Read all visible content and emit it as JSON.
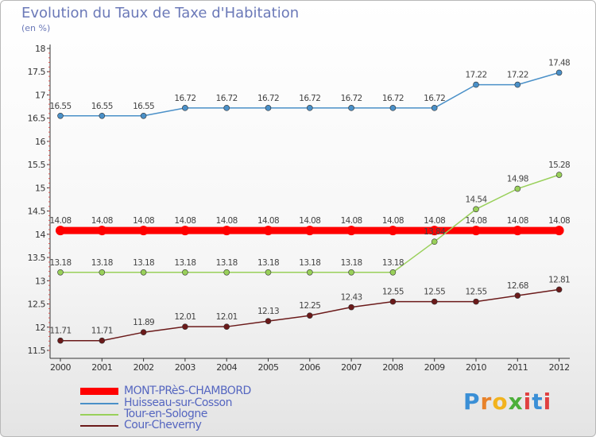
{
  "title": "Evolution du Taux de Taxe d'Habitation",
  "subtitle": "(en %)",
  "brand": {
    "text": "Proxiti",
    "letters": [
      "P",
      "r",
      "o",
      "x",
      "i",
      "t",
      "i"
    ],
    "colors": [
      "#3a8fd6",
      "#e8822a",
      "#f2b31d",
      "#4caf3a",
      "#e04040",
      "#3a8fd6",
      "#e04040"
    ]
  },
  "chart_data": {
    "type": "line",
    "title": "Evolution du Taux de Taxe d'Habitation",
    "ylabel": "(en %)",
    "xlabel": "",
    "x": [
      "2000",
      "2001",
      "2002",
      "2003",
      "2004",
      "2005",
      "2006",
      "2007",
      "2008",
      "2009",
      "2010",
      "2011",
      "2012"
    ],
    "ylim": [
      11.5,
      18
    ],
    "yticks": [
      "11.5",
      "12",
      "12.5",
      "13",
      "13.5",
      "14",
      "14.5",
      "15",
      "15.5",
      "16",
      "16.5",
      "17",
      "17.5",
      "18"
    ],
    "grid": false,
    "legend_position": "bottom-left",
    "series": [
      {
        "name": "MONT-PRèS-CHAMBORD",
        "color": "#ff0000",
        "values": [
          14.08,
          14.08,
          14.08,
          14.08,
          14.08,
          14.08,
          14.08,
          14.08,
          14.08,
          14.08,
          14.08,
          14.08,
          14.08
        ],
        "labels": [
          "14.08",
          "14.08",
          "14.08",
          "14.08",
          "14.08",
          "14.08",
          "14.08",
          "14.08",
          "14.08",
          "14.08",
          "14.08",
          "14.08",
          "14.08"
        ]
      },
      {
        "name": "Huisseau-sur-Cosson",
        "color": "#4a90c8",
        "values": [
          16.55,
          16.55,
          16.55,
          16.72,
          16.72,
          16.72,
          16.72,
          16.72,
          16.72,
          16.72,
          17.22,
          17.22,
          17.48
        ],
        "labels": [
          "16.55",
          "16.55",
          "16.55",
          "16.72",
          "16.72",
          "16.72",
          "16.72",
          "16.72",
          "16.72",
          "16.72",
          "17.22",
          "17.22",
          "17.48"
        ]
      },
      {
        "name": "Tour-en-Sologne",
        "color": "#99d05a",
        "values": [
          13.18,
          13.18,
          13.18,
          13.18,
          13.18,
          13.18,
          13.18,
          13.18,
          13.18,
          13.84,
          14.54,
          14.98,
          15.28
        ],
        "labels": [
          "13.18",
          "13.18",
          "13.18",
          "13.18",
          "13.18",
          "13.18",
          "13.18",
          "13.18",
          "13.18",
          "13.84",
          "14.54",
          "14.98",
          "15.28"
        ]
      },
      {
        "name": "Cour-Cheverny",
        "color": "#6b1a1a",
        "values": [
          11.71,
          11.71,
          11.89,
          12.01,
          12.01,
          12.13,
          12.25,
          12.43,
          12.55,
          12.55,
          12.55,
          12.68,
          12.81
        ],
        "labels": [
          "11.71",
          "11.71",
          "11.89",
          "12.01",
          "12.01",
          "12.13",
          "12.25",
          "12.43",
          "12.55",
          "12.55",
          "12.55",
          "12.68",
          "12.81"
        ]
      }
    ]
  }
}
